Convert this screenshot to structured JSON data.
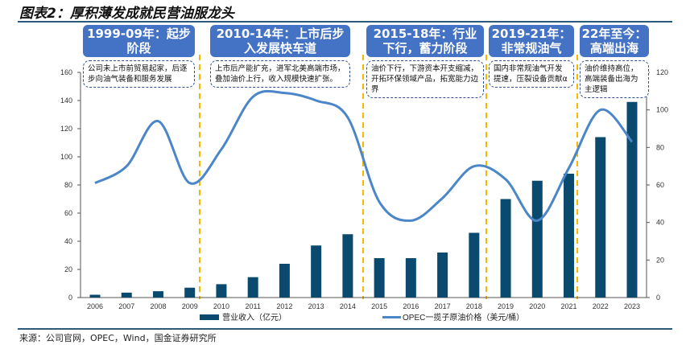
{
  "title": "图表2：厚积薄发成就民营油服龙头",
  "phases": [
    {
      "label": "1999-09年：起步阶段",
      "note": "公司未上市前贸易起家，后逐步向油气装备和服务发展"
    },
    {
      "label": "2010-14年：上市后步入发展快车道",
      "note": "上市后产能扩充，进军北美高端市场，叠加油价上行，收入规模快速扩张。"
    },
    {
      "label": "2015-18年：行业下行，蓄力阶段",
      "note": "油价下行，下游资本开支缩减，开拓环保领域产品，拓宽能力边界"
    },
    {
      "label": "2019-21年：非常规油气",
      "note": "国内非常规油气开发提速，压裂设备贡献α"
    },
    {
      "label": "22年至今：高端出海",
      "note": "油价维持高位，高端装备出海为主逻辑"
    }
  ],
  "source": "来源：公司官网，OPEC，Wind，国金证券研究所",
  "chart_data": {
    "type": "bar+line",
    "categories": [
      "2006",
      "2007",
      "2008",
      "2009",
      "2010",
      "2011",
      "2012",
      "2013",
      "2014",
      "2015",
      "2016",
      "2017",
      "2018",
      "2019",
      "2020",
      "2021",
      "2022",
      "2023"
    ],
    "series": [
      {
        "name": "营业收入（亿元）",
        "type": "bar",
        "axis": "left",
        "color": "#0b4a6f",
        "values": [
          2,
          3.5,
          4.5,
          7,
          9.5,
          14.5,
          24,
          37,
          45,
          28,
          28,
          32,
          46,
          70,
          83,
          88,
          114,
          139
        ]
      },
      {
        "name": "OPEC一揽子原油价格（美元/桶）",
        "type": "line",
        "axis": "right",
        "color": "#4a86c8",
        "values": [
          61,
          70,
          94,
          61,
          79,
          107,
          109,
          105,
          96,
          51,
          41,
          53,
          70,
          63,
          41,
          69,
          100,
          83
        ]
      }
    ],
    "ylim_left": [
      0,
      160
    ],
    "yticks_left": [
      "0",
      "20",
      "40",
      "60",
      "80",
      "100",
      "120",
      "140",
      "160"
    ],
    "ylim_right": [
      0,
      120
    ],
    "yticks_right": [
      "0",
      "20",
      "40",
      "60",
      "80",
      "100",
      "120"
    ],
    "legend": "bottom"
  }
}
